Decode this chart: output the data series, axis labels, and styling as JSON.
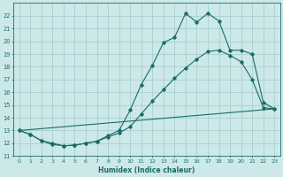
{
  "xlabel": "Humidex (Indice chaleur)",
  "ylabel": "",
  "bg_color": "#cce8e8",
  "line_color": "#1a6b6b",
  "grid_color": "#aacfcf",
  "xlim": [
    -0.5,
    23.5
  ],
  "ylim": [
    11.0,
    23.0
  ],
  "yticks": [
    11,
    12,
    13,
    14,
    15,
    16,
    17,
    18,
    19,
    20,
    21,
    22
  ],
  "xticks": [
    0,
    1,
    2,
    3,
    4,
    5,
    6,
    7,
    8,
    9,
    10,
    11,
    12,
    13,
    14,
    15,
    16,
    17,
    18,
    19,
    20,
    21,
    22,
    23
  ],
  "line1_x": [
    0,
    1,
    2,
    3,
    4,
    5,
    6,
    7,
    8,
    9,
    10,
    11,
    12,
    13,
    14,
    15,
    16,
    17,
    18,
    19,
    20,
    21,
    22,
    23
  ],
  "line1_y": [
    13.0,
    12.7,
    12.2,
    11.9,
    11.8,
    11.85,
    12.0,
    12.15,
    12.6,
    13.0,
    14.6,
    16.6,
    18.1,
    19.9,
    20.3,
    22.2,
    21.5,
    22.2,
    21.6,
    19.3,
    19.3,
    19.0,
    15.2,
    14.7
  ],
  "line2_x": [
    0,
    1,
    2,
    3,
    4,
    5,
    6,
    7,
    8,
    9,
    10,
    11,
    12,
    13,
    14,
    15,
    16,
    17,
    18,
    19,
    20,
    21,
    22,
    23
  ],
  "line2_y": [
    13.0,
    12.7,
    12.2,
    12.0,
    11.8,
    11.85,
    12.0,
    12.15,
    12.5,
    12.8,
    13.3,
    14.3,
    15.3,
    16.2,
    17.1,
    17.9,
    18.6,
    19.2,
    19.3,
    18.9,
    18.4,
    17.0,
    14.8,
    14.7
  ],
  "line3_x": [
    0,
    23
  ],
  "line3_y": [
    13.0,
    14.7
  ]
}
